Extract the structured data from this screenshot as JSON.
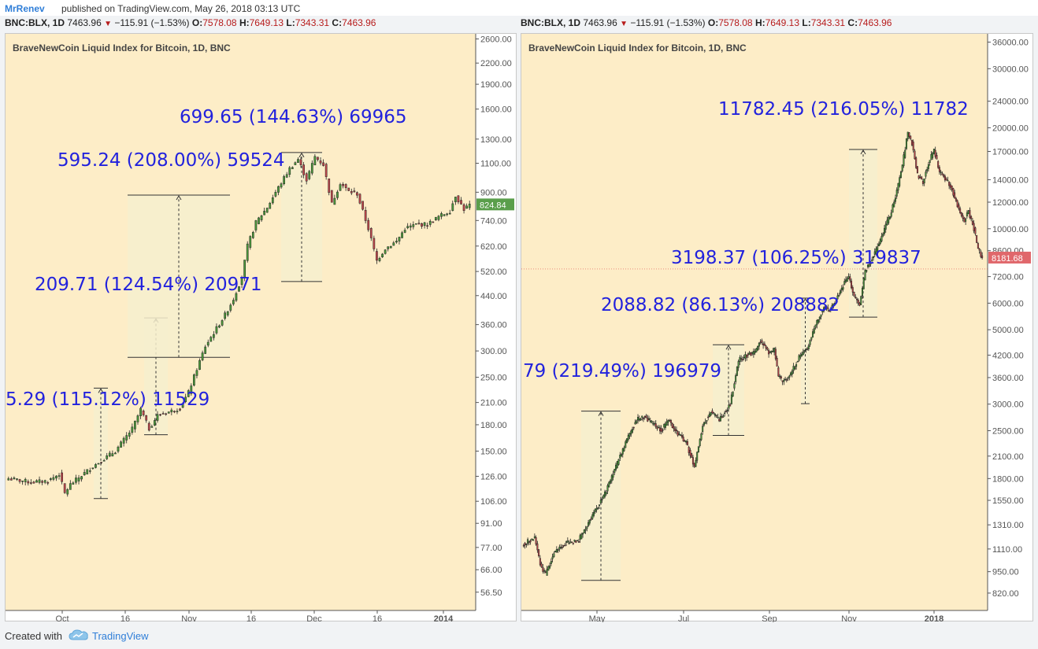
{
  "header": {
    "author": "MrRenev",
    "published": "published on TradingView.com, May 26, 2018 03:13 UTC"
  },
  "ohlc": {
    "symbol": "BNC:BLX, 1D",
    "last": "7463.96",
    "change": "−115.91 (−1.53%)",
    "o_label": "O:",
    "o": "7578.08",
    "h_label": "H:",
    "h": "7649.13",
    "l_label": "L:",
    "l": "7343.31",
    "c_label": "C:",
    "c": "7463.96"
  },
  "colors": {
    "bg": "#fdedc7",
    "up_candle": "#4a9a3a",
    "down_candle": "#c0464b",
    "range_fill": "#f6efce",
    "annotation": "#2222dd",
    "price_tag_up": "#5a9e4b",
    "price_tag_down": "#e0676b"
  },
  "footer": {
    "made_with": "Created with",
    "brand": "TradingView"
  },
  "chart_data": [
    {
      "type": "candlestick",
      "title": "BraveNewCoin Liquid Index for Bitcoin, 1D, BNC",
      "scale": "log",
      "ylim": [
        52,
        2650
      ],
      "y_ticks": [
        "2600.00",
        "2200.00",
        "1900.00",
        "1600.00",
        "1300.00",
        "1100.00",
        "900.00",
        "740.00",
        "620.00",
        "520.00",
        "440.00",
        "360.00",
        "300.00",
        "250.00",
        "210.00",
        "180.00",
        "150.00",
        "126.00",
        "106.00",
        "91.00",
        "77.00",
        "66.00",
        "56.50"
      ],
      "x_ticks": [
        "Oct",
        "16",
        "Nov",
        "16",
        "Dec",
        "16",
        "2014"
      ],
      "last_price": "824.84",
      "anchors": [
        [
          0,
          124
        ],
        [
          8,
          121
        ],
        [
          14,
          122
        ],
        [
          18,
          128
        ],
        [
          20,
          112
        ],
        [
          22,
          119
        ],
        [
          30,
          135
        ],
        [
          38,
          150
        ],
        [
          44,
          175
        ],
        [
          47,
          200
        ],
        [
          50,
          175
        ],
        [
          53,
          192
        ],
        [
          58,
          198
        ],
        [
          61,
          202
        ],
        [
          64,
          225
        ],
        [
          67,
          265
        ],
        [
          70,
          310
        ],
        [
          73,
          340
        ],
        [
          77,
          385
        ],
        [
          80,
          430
        ],
        [
          83,
          500
        ],
        [
          85,
          620
        ],
        [
          88,
          730
        ],
        [
          92,
          810
        ],
        [
          95,
          900
        ],
        [
          100,
          1060
        ],
        [
          103,
          1130
        ],
        [
          106,
          980
        ],
        [
          109,
          1150
        ],
        [
          112,
          1090
        ],
        [
          115,
          830
        ],
        [
          118,
          960
        ],
        [
          121,
          905
        ],
        [
          124,
          890
        ],
        [
          128,
          700
        ],
        [
          131,
          560
        ],
        [
          134,
          610
        ],
        [
          138,
          640
        ],
        [
          141,
          700
        ],
        [
          145,
          720
        ],
        [
          149,
          720
        ],
        [
          153,
          760
        ],
        [
          157,
          790
        ],
        [
          159,
          880
        ],
        [
          162,
          800
        ],
        [
          164,
          824
        ]
      ],
      "measures": [
        {
          "label": "5.29 (115.12%) 11529",
          "from": 108,
          "to": 232
        },
        {
          "label": "209.71 (124.54%) 20971",
          "from": 168,
          "to": 377
        },
        {
          "label": "595.24 (208.00%) 59524",
          "from": 287,
          "to": 882
        },
        {
          "label": "699.65 (144.63%) 69965",
          "from": 485,
          "to": 1185
        }
      ]
    },
    {
      "type": "candlestick",
      "title": "BraveNewCoin Liquid Index for Bitcoin, 1D, BNC",
      "scale": "log",
      "ylim": [
        760,
        37500
      ],
      "y_ticks": [
        "36000.00",
        "30000.00",
        "24000.00",
        "20000.00",
        "17000.00",
        "14000.00",
        "12000.00",
        "10000.00",
        "8600.00",
        "7200.00",
        "6000.00",
        "5000.00",
        "4200.00",
        "3600.00",
        "3000.00",
        "2500.00",
        "2100.00",
        "1800.00",
        "1550.00",
        "1310.00",
        "1110.00",
        "950.00",
        "820.00"
      ],
      "x_ticks": [
        "May",
        "Jul",
        "Sep",
        "Nov",
        "2018"
      ],
      "last_price": "8181.68",
      "anchors": [
        [
          0,
          1150
        ],
        [
          8,
          1200
        ],
        [
          12,
          1000
        ],
        [
          16,
          930
        ],
        [
          22,
          1080
        ],
        [
          30,
          1150
        ],
        [
          40,
          1180
        ],
        [
          50,
          1400
        ],
        [
          60,
          1650
        ],
        [
          70,
          2100
        ],
        [
          76,
          2400
        ],
        [
          82,
          2700
        ],
        [
          88,
          2750
        ],
        [
          95,
          2600
        ],
        [
          100,
          2500
        ],
        [
          105,
          2700
        ],
        [
          112,
          2450
        ],
        [
          118,
          2300
        ],
        [
          124,
          1950
        ],
        [
          130,
          2600
        ],
        [
          136,
          2850
        ],
        [
          142,
          2700
        ],
        [
          150,
          3000
        ],
        [
          156,
          4050
        ],
        [
          162,
          4200
        ],
        [
          168,
          4300
        ],
        [
          172,
          4650
        ],
        [
          178,
          4250
        ],
        [
          182,
          4350
        ],
        [
          185,
          3650
        ],
        [
          188,
          3500
        ],
        [
          194,
          3700
        ],
        [
          200,
          4150
        ],
        [
          206,
          4400
        ],
        [
          212,
          5200
        ],
        [
          218,
          5850
        ],
        [
          222,
          5700
        ],
        [
          227,
          6150
        ],
        [
          233,
          6900
        ],
        [
          236,
          7200
        ],
        [
          240,
          6300
        ],
        [
          244,
          5900
        ],
        [
          248,
          7500
        ],
        [
          252,
          8000
        ],
        [
          256,
          8600
        ],
        [
          262,
          10000
        ],
        [
          267,
          11200
        ],
        [
          272,
          13500
        ],
        [
          275,
          15500
        ],
        [
          279,
          19400
        ],
        [
          282,
          18000
        ],
        [
          286,
          14500
        ],
        [
          290,
          13800
        ],
        [
          294,
          15700
        ],
        [
          298,
          17200
        ],
        [
          302,
          14800
        ],
        [
          307,
          14000
        ],
        [
          311,
          13100
        ],
        [
          316,
          11400
        ],
        [
          320,
          10600
        ],
        [
          323,
          11300
        ],
        [
          327,
          10000
        ],
        [
          330,
          8700
        ],
        [
          333,
          8181
        ]
      ],
      "measures": [
        {
          "label": "79 (219.49%) 196979",
          "from": 895,
          "to": 2860
        },
        {
          "label": "2088.82 (86.13%) 208882",
          "from": 2420,
          "to": 4510
        },
        {
          "label": "3198.37 (106.25%) 319837",
          "from": 3010,
          "to": 6210
        },
        {
          "label": "11782.45 (216.05%) 11782",
          "from": 5450,
          "to": 17230
        }
      ]
    }
  ]
}
